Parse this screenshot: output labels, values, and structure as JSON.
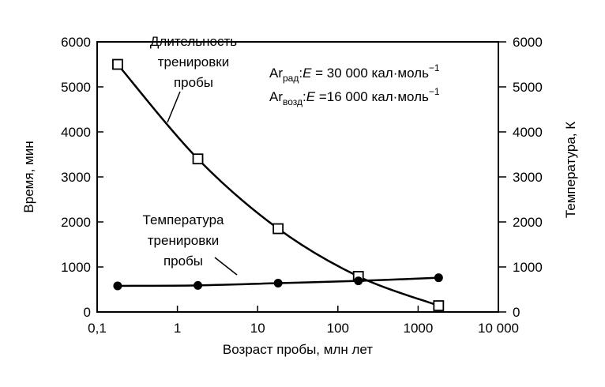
{
  "chart_data": {
    "type": "line",
    "xscale": "log",
    "xlim": [
      0.1,
      10000
    ],
    "xticks": [
      "0,1",
      "1",
      "10",
      "100",
      "1000",
      "10 000"
    ],
    "xtick_values": [
      0.1,
      1,
      10,
      100,
      1000,
      10000
    ],
    "xlabel": "Возраст пробы, млн лет",
    "ylabel": "Время, мин",
    "ylim": [
      0,
      6000
    ],
    "yticks": [
      "0",
      "1000",
      "2000",
      "3000",
      "4000",
      "5000",
      "6000"
    ],
    "ytick_values": [
      0,
      1000,
      2000,
      3000,
      4000,
      5000,
      6000
    ],
    "y2label": "Температура, К",
    "y2lim": [
      0,
      6000
    ],
    "y2ticks": [
      "0",
      "1000",
      "2000",
      "3000",
      "4000",
      "5000",
      "6000"
    ],
    "y2tick_values": [
      0,
      1000,
      2000,
      3000,
      4000,
      5000,
      6000
    ],
    "grid": false,
    "series": [
      {
        "name": "Длительность тренировки пробы",
        "marker": "open-square",
        "axis": "left",
        "x": [
          0.18,
          1.8,
          18,
          180,
          1800
        ],
        "y": [
          5500,
          3400,
          1850,
          790,
          140
        ]
      },
      {
        "name": "Температура тренировки пробы",
        "marker": "filled-circle",
        "axis": "right",
        "x": [
          0.18,
          1.8,
          18,
          180,
          1800
        ],
        "y": [
          580,
          590,
          640,
          690,
          760
        ]
      }
    ],
    "label_lines": {
      "duration": [
        "Длительность",
        "тренировки",
        "пробы"
      ],
      "temperature": [
        "Температура",
        "тренировки",
        "пробы"
      ]
    },
    "annotations": [
      {
        "prefix": "Ar",
        "sub": "рад",
        "formula": ":",
        "var": "E",
        "value": " = 30 000 кал·моль",
        "sup": "−1"
      },
      {
        "prefix": "Ar",
        "sub": "возд",
        "formula": ":",
        "var": "E",
        "value": " =16 000 кал·моль",
        "sup": "−1"
      }
    ]
  }
}
